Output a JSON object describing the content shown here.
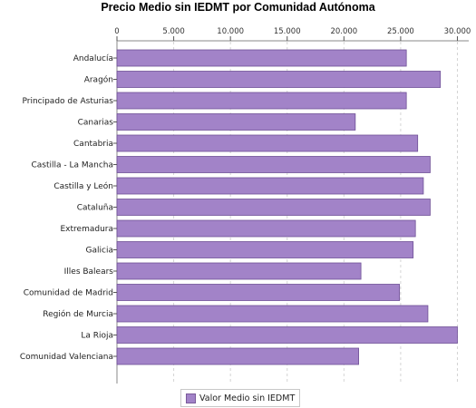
{
  "chart_data": {
    "type": "bar",
    "orientation": "horizontal",
    "title": "Precio Medio sin IEDMT por Comunidad Autónoma",
    "xlabel": "",
    "ylabel": "",
    "xlim": [
      0,
      31000
    ],
    "ticks": [
      0,
      5000,
      10000,
      15000,
      20000,
      25000,
      30000
    ],
    "tick_labels": [
      "0",
      "5.000",
      "10.000",
      "15.000",
      "20.000",
      "25.000",
      "30.000"
    ],
    "grid": true,
    "legend_position": "bottom",
    "categories": [
      "Andalucía",
      "Aragón",
      "Principado de Asturias",
      "Canarias",
      "Cantabria",
      "Castilla - La Mancha",
      "Castilla y León",
      "Cataluña",
      "Extremadura",
      "Galicia",
      "Illes Balears",
      "Comunidad de Madrid",
      "Región de Murcia",
      "La Rioja",
      "Comunidad Valenciana"
    ],
    "series": [
      {
        "name": "Valor Medio sin IEDMT",
        "color": "#a283c8",
        "values": [
          25500,
          28500,
          25500,
          21000,
          26500,
          27600,
          27000,
          27600,
          26300,
          26100,
          21500,
          24900,
          27400,
          30000,
          21300
        ]
      }
    ]
  }
}
